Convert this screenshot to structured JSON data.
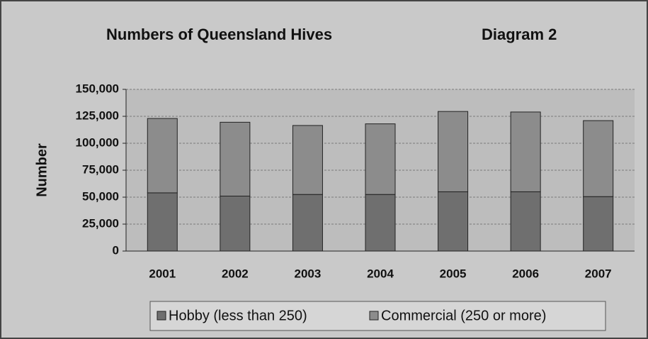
{
  "chart_data": {
    "type": "stacked_bar",
    "title": "Numbers of Queensland Hives",
    "annotation": "Diagram 2",
    "y_label": "Number",
    "categories": [
      "2001",
      "2002",
      "2003",
      "2004",
      "2005",
      "2006",
      "2007"
    ],
    "series": [
      {
        "name": "Hobby (less than 250)",
        "color": "#6f6f6f",
        "values": [
          54000,
          51000,
          52500,
          52500,
          55000,
          55000,
          50500
        ]
      },
      {
        "name": "Commercial (250 or more)",
        "color": "#8c8c8c",
        "values": [
          69000,
          68500,
          64000,
          65500,
          74500,
          74000,
          70500
        ]
      }
    ],
    "ylim": [
      0,
      150000
    ],
    "yticks": [
      0,
      {
        "value": 25000,
        "label": "25,000"
      },
      {
        "value": 50000,
        "label": "50,000"
      },
      {
        "value": 75000,
        "label": "75,000"
      },
      {
        "value": 100000,
        "label": "100,000"
      },
      {
        "value": 125000,
        "label": "125,000"
      },
      {
        "value": 150000,
        "label": "150,000"
      }
    ],
    "grid": true,
    "legend": "bottom"
  }
}
